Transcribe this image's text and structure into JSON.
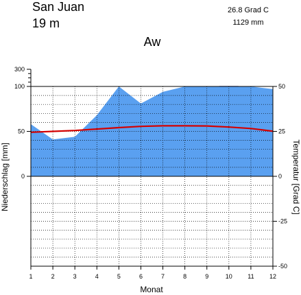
{
  "header": {
    "station": "San Juan",
    "elevation": "19  m",
    "mean_temp": "26.8 Grad C",
    "annual_precip": "1129 mm",
    "climate_class": "Aw"
  },
  "chart_data": {
    "type": "area",
    "title": "",
    "xlabel": "Monat",
    "ylabel_left": "Niederschlag [mm]",
    "ylabel_right": "Temperatur [Grad C]",
    "x": [
      1,
      2,
      3,
      4,
      5,
      6,
      7,
      8,
      9,
      10,
      11,
      12
    ],
    "x_ticks": [
      "1",
      "2",
      "3",
      "4",
      "5",
      "6",
      "7",
      "8",
      "9",
      "10",
      "11",
      "12"
    ],
    "left_ticks": [
      "300",
      "100",
      "50",
      "0"
    ],
    "right_ticks": [
      "50",
      "25",
      "0",
      "-25",
      "-50"
    ],
    "ylim_temperature": [
      -50,
      50
    ],
    "precip_scale": "precipitation plotted at 2 mm per °C up to 100 mm, compressed above 100 mm (axis top 300 mm)",
    "series": [
      {
        "name": "",
        "quantity": "precipitation",
        "unit": "mm",
        "values": [
          58,
          41,
          44,
          68,
          102,
          81,
          94,
          104,
          103,
          105,
          103,
          97
        ],
        "color": "#5aa0f0",
        "excess_color": "#0b1fb0"
      },
      {
        "name": "",
        "quantity": "temperature",
        "unit": "°C",
        "values": [
          24.5,
          25.0,
          25.5,
          26.3,
          27.1,
          27.8,
          28.1,
          28.1,
          28.0,
          27.4,
          26.6,
          25.1
        ],
        "color": "#d40000"
      }
    ],
    "grid": true,
    "legend": "none"
  }
}
